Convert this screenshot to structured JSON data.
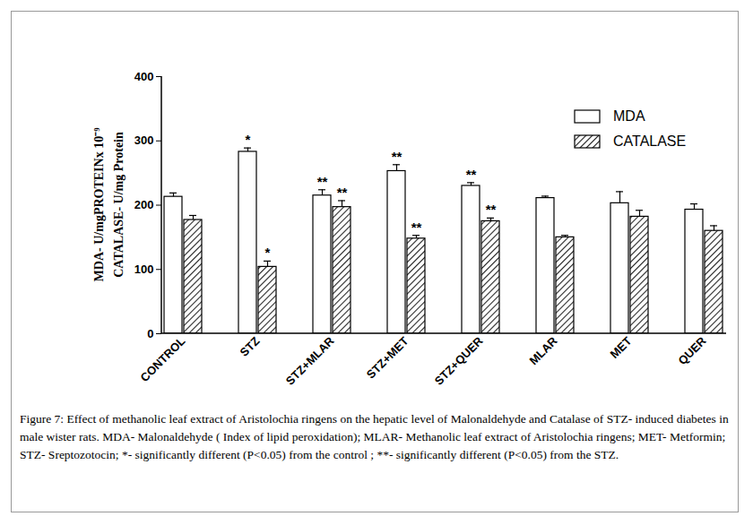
{
  "chart_data": {
    "type": "bar",
    "ylabel": [
      "MDA- U/mgPROTEINx 10⁻⁹",
      "CATALASE- U/mg Protein"
    ],
    "caption": "Figure 7: Effect of methanolic leaf extract of Aristolochia ringens on the hepatic level of Malonaldehyde and Catalase of STZ- induced diabetes in male wister rats. MDA- Malonaldehyde ( Index of lipid peroxidation); MLAR- Methanolic leaf extract of Aristolochia ringens; MET- Metformin; STZ- Sreptozotocin; *- significantly different (P<0.05) from the control ; **- significantly different (P<0.05) from the STZ.",
    "categories": [
      "CONTROL",
      "STZ",
      "STZ+MLAR",
      "STZ+MET",
      "STZ+QUER",
      "MLAR",
      "MET",
      "QUER"
    ],
    "series": [
      {
        "name": "MDA",
        "color": "#ffffff",
        "values": [
          213,
          283,
          215,
          253,
          230,
          211,
          203,
          193
        ],
        "errors": [
          6,
          6,
          9,
          10,
          5,
          3,
          18,
          9
        ],
        "annotations": [
          null,
          "*",
          "**",
          "**",
          "**",
          null,
          null,
          null
        ]
      },
      {
        "name": "CATALASE",
        "color": "#222222",
        "values": [
          177,
          104,
          197,
          148,
          175,
          150,
          182,
          160
        ],
        "errors": [
          7,
          9,
          10,
          5,
          5,
          3,
          10,
          8
        ],
        "annotations": [
          null,
          "*",
          "**",
          "**",
          "**",
          null,
          null,
          null
        ]
      }
    ],
    "ylim": [
      0,
      400
    ],
    "yticks": [
      0,
      100,
      200,
      300,
      400
    ],
    "grid": false,
    "legend": "top-right"
  }
}
